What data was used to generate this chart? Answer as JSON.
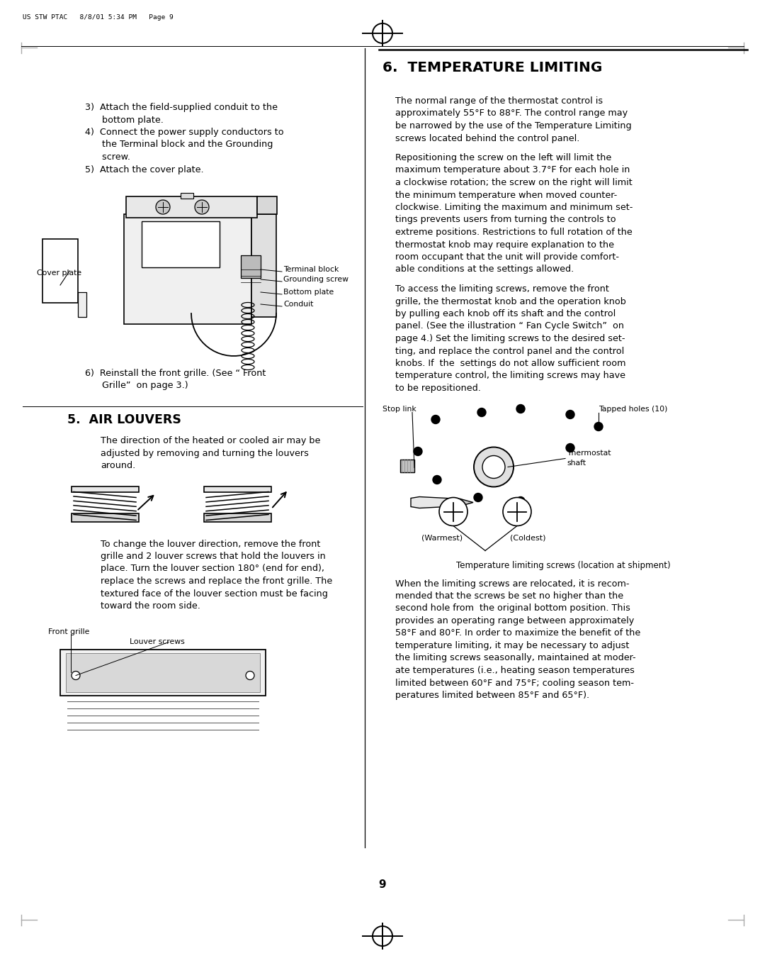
{
  "bg_color": "#ffffff",
  "page_width": 10.8,
  "page_height": 13.65,
  "header_text": "US STW PTAC   8/8/01 5:34 PM   Page 9",
  "page_number": "9",
  "section5_title": "5.  AIR LOUVERS",
  "section6_title": "6.  TEMPERATURE LIMITING",
  "cover_plate_label": "Cover plate",
  "terminal_block_label": "Terminal block",
  "grounding_screw_label": "Grounding screw",
  "bottom_plate_label": "Bottom plate",
  "conduit_label": "Conduit",
  "front_grille_label": "Front grille",
  "louver_screws_label": "Louver screws",
  "stop_link_label": "Stop link",
  "tapped_holes_label": "Tapped holes (10)",
  "thermostat_shaft_1": "Thermostat",
  "thermostat_shaft_2": "shaft",
  "warmest_label": "(Warmest)",
  "coldest_label": "(Coldest)",
  "temp_caption": "Temperature limiting screws (location at shipment)",
  "left_lines": [
    "3)  Attach the field-supplied conduit to the",
    "      bottom plate.",
    "4)  Connect the power supply conductors to",
    "      the Terminal block and the Grounding",
    "      screw.",
    "5)  Attach the cover plate."
  ],
  "item6_lines": [
    "6)  Reinstall the front grille. (See “ Front",
    "      Grille”  on page 3.)"
  ],
  "louvers_body_lines": [
    "The direction of the heated or cooled air may be",
    "adjusted by removing and turning the louvers",
    "around."
  ],
  "louvers_change_lines": [
    "To change the louver direction, remove the front",
    "grille and 2 louver screws that hold the louvers in",
    "place. Turn the louver section 180° (end for end),",
    "replace the screws and replace the front grille. The",
    "textured face of the louver section must be facing",
    "toward the room side."
  ],
  "temp_p1_lines": [
    "The normal range of the thermostat control is",
    "approximately 55°F to 88°F. The control range may",
    "be narrowed by the use of the Temperature Limiting",
    "screws located behind the control panel."
  ],
  "temp_p2_lines": [
    "Repositioning the screw on the left will limit the",
    "maximum temperature about 3.7°F for each hole in",
    "a clockwise rotation; the screw on the right will limit",
    "the minimum temperature when moved counter-",
    "clockwise. Limiting the maximum and minimum set-",
    "tings prevents users from turning the controls to",
    "extreme positions. Restrictions to full rotation of the",
    "thermostat knob may require explanation to the",
    "room occupant that the unit will provide comfort-",
    "able conditions at the settings allowed."
  ],
  "temp_p3_lines": [
    "To access the limiting screws, remove the front",
    "grille, the thermostat knob and the operation knob",
    "by pulling each knob off its shaft and the control",
    "panel. (See the illustration “ Fan Cycle Switch”  on",
    "page 4.) Set the limiting screws to the desired set-",
    "ting, and replace the control panel and the control",
    "knobs. If  the  settings do not allow sufficient room",
    "temperature control, the limiting screws may have",
    "to be repositioned."
  ],
  "temp_p4_lines": [
    "When the limiting screws are relocated, it is recom-",
    "mended that the screws be set no higher than the",
    "second hole from  the original bottom position. This",
    "provides an operating range between approximately",
    "58°F and 80°F. In order to maximize the benefit of the",
    "temperature limiting, it may be necessary to adjust",
    "the limiting screws seasonally, maintained at moder-",
    "ate temperatures (i.e., heating season temperatures",
    "limited between 60°F and 75°F; cooling season tem-",
    "peratures limited between 85°F and 65°F)."
  ]
}
